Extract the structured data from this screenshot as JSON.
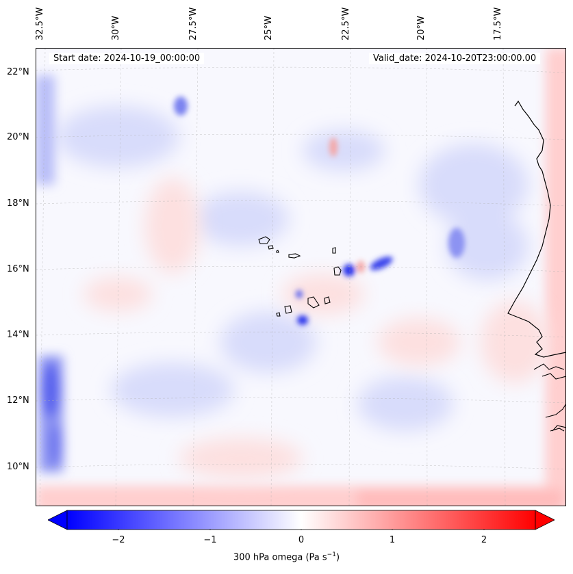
{
  "header": {
    "start_date": "Start date: 2024-10-19_00:00:00",
    "valid_date": "Valid_date: 2024-10-20T23:00:00.00"
  },
  "axes": {
    "lon_labels": [
      "32.5°W",
      "30°W",
      "27.5°W",
      "25°W",
      "22.5°W",
      "20°W",
      "17.5°W"
    ],
    "lat_labels": [
      "22°N",
      "20°N",
      "18°N",
      "16°N",
      "14°N",
      "12°N",
      "10°N"
    ]
  },
  "colorbar": {
    "label": "300 hPa omega (Pa s",
    "label_sup": "−1",
    "label_close": ")",
    "ticks": [
      "−2",
      "−1",
      "0",
      "1",
      "2"
    ],
    "vmin": -2.6,
    "vmax": 2.6,
    "min_color": "#0000ff",
    "max_color": "#ff0000"
  },
  "colors": {
    "coastline": "#000000",
    "gridline": "#b0b0b0"
  }
}
